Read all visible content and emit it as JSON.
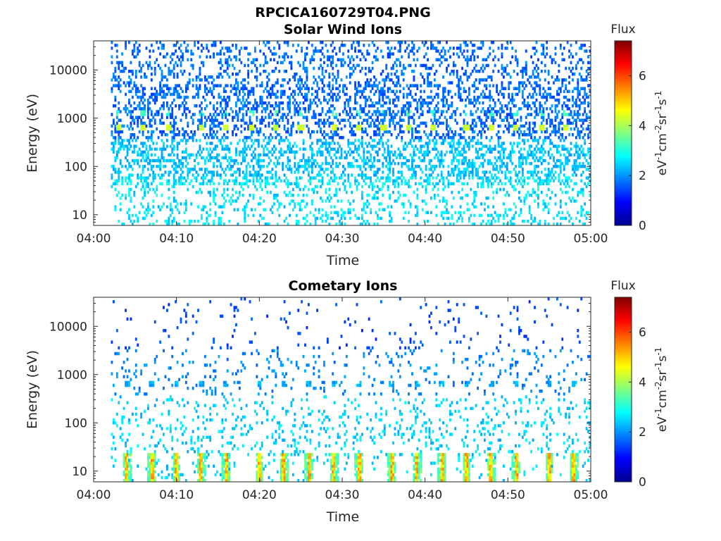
{
  "figure": {
    "title": "RPCICA160729T04.PNG"
  },
  "chart_data": [
    {
      "type": "heatmap",
      "title": "Solar Wind Ions",
      "xlabel": "Time",
      "ylabel": "Energy (eV)",
      "x_range": [
        "04:00",
        "05:00"
      ],
      "x_ticks": [
        "04:00",
        "04:10",
        "04:20",
        "04:30",
        "04:40",
        "04:50",
        "05:00"
      ],
      "y_scale": "log",
      "y_range": [
        6,
        40000
      ],
      "y_ticks": [
        "10",
        "100",
        "1000",
        "10000"
      ],
      "grid": false,
      "colormap": "jet",
      "colorbar": {
        "label": "Flux",
        "unit_label": "eV-1cm-2sr-1s-1",
        "range": [
          0,
          7.4
        ],
        "ticks": [
          "0",
          "2",
          "4",
          "6"
        ]
      },
      "data_start_time": "04:02",
      "sweep_period_min": 3.2,
      "notes_visible": "sparse low flux (~1.5-3) across 10 eV - 40000 eV; peaks ~4-4.5 at ~650 eV once per sweep",
      "peaks": [
        {
          "time": "04:03",
          "energy_eV": 650,
          "flux": 4.3
        },
        {
          "time": "04:06",
          "energy_eV": 650,
          "flux": 4.3
        },
        {
          "time": "04:09",
          "energy_eV": 650,
          "flux": 4.3
        },
        {
          "time": "04:13",
          "energy_eV": 650,
          "flux": 4.3
        },
        {
          "time": "04:16",
          "energy_eV": 650,
          "flux": 4.3
        },
        {
          "time": "04:19",
          "energy_eV": 650,
          "flux": 4.3
        },
        {
          "time": "04:22",
          "energy_eV": 650,
          "flux": 4.3
        },
        {
          "time": "04:25",
          "energy_eV": 650,
          "flux": 4.3
        },
        {
          "time": "04:29",
          "energy_eV": 650,
          "flux": 4.3
        },
        {
          "time": "04:32",
          "energy_eV": 650,
          "flux": 4.3
        },
        {
          "time": "04:35",
          "energy_eV": 650,
          "flux": 4.3
        },
        {
          "time": "04:38",
          "energy_eV": 650,
          "flux": 4.3
        },
        {
          "time": "04:41",
          "energy_eV": 650,
          "flux": 4.3
        },
        {
          "time": "04:45",
          "energy_eV": 650,
          "flux": 4.3
        },
        {
          "time": "04:48",
          "energy_eV": 650,
          "flux": 4.3
        },
        {
          "time": "04:51",
          "energy_eV": 650,
          "flux": 4.3
        },
        {
          "time": "04:54",
          "energy_eV": 650,
          "flux": 4.3
        },
        {
          "time": "04:57",
          "energy_eV": 650,
          "flux": 4.3
        }
      ]
    },
    {
      "type": "heatmap",
      "title": "Cometary Ions",
      "xlabel": "Time",
      "ylabel": "Energy (eV)",
      "x_range": [
        "04:00",
        "05:00"
      ],
      "x_ticks": [
        "04:00",
        "04:10",
        "04:20",
        "04:30",
        "04:40",
        "04:50",
        "05:00"
      ],
      "y_scale": "log",
      "y_range": [
        6,
        40000
      ],
      "y_ticks": [
        "10",
        "100",
        "1000",
        "10000"
      ],
      "grid": false,
      "colormap": "jet",
      "colorbar": {
        "label": "Flux",
        "unit_label": "eV-1cm-2sr-1s-1",
        "range": [
          0,
          7.4
        ],
        "ticks": [
          "0",
          "2",
          "4",
          "6"
        ]
      },
      "data_start_time": "04:02",
      "sweep_period_min": 3.2,
      "notes_visible": "sparse flux above 20 eV; strong bursts ~4.5-5.5 at 6-20 eV once per sweep; secondary ~2 at ~650 eV",
      "peaks": [
        {
          "time": "04:04",
          "energy_eV": 12,
          "flux": 5.0
        },
        {
          "time": "04:07",
          "energy_eV": 12,
          "flux": 5.2
        },
        {
          "time": "04:10",
          "energy_eV": 12,
          "flux": 5.0
        },
        {
          "time": "04:13",
          "energy_eV": 12,
          "flux": 4.6
        },
        {
          "time": "04:16",
          "energy_eV": 12,
          "flux": 4.8
        },
        {
          "time": "04:20",
          "energy_eV": 12,
          "flux": 4.7
        },
        {
          "time": "04:23",
          "energy_eV": 12,
          "flux": 5.6
        },
        {
          "time": "04:26",
          "energy_eV": 12,
          "flux": 5.0
        },
        {
          "time": "04:29",
          "energy_eV": 12,
          "flux": 4.8
        },
        {
          "time": "04:32",
          "energy_eV": 12,
          "flux": 4.9
        },
        {
          "time": "04:36",
          "energy_eV": 12,
          "flux": 4.8
        },
        {
          "time": "04:39",
          "energy_eV": 12,
          "flux": 5.4
        },
        {
          "time": "04:42",
          "energy_eV": 12,
          "flux": 4.6
        },
        {
          "time": "04:45",
          "energy_eV": 12,
          "flux": 5.0
        },
        {
          "time": "04:48",
          "energy_eV": 12,
          "flux": 5.0
        },
        {
          "time": "04:51",
          "energy_eV": 12,
          "flux": 4.7
        },
        {
          "time": "04:55",
          "energy_eV": 12,
          "flux": 5.0
        },
        {
          "time": "04:58",
          "energy_eV": 12,
          "flux": 4.8
        }
      ]
    }
  ]
}
